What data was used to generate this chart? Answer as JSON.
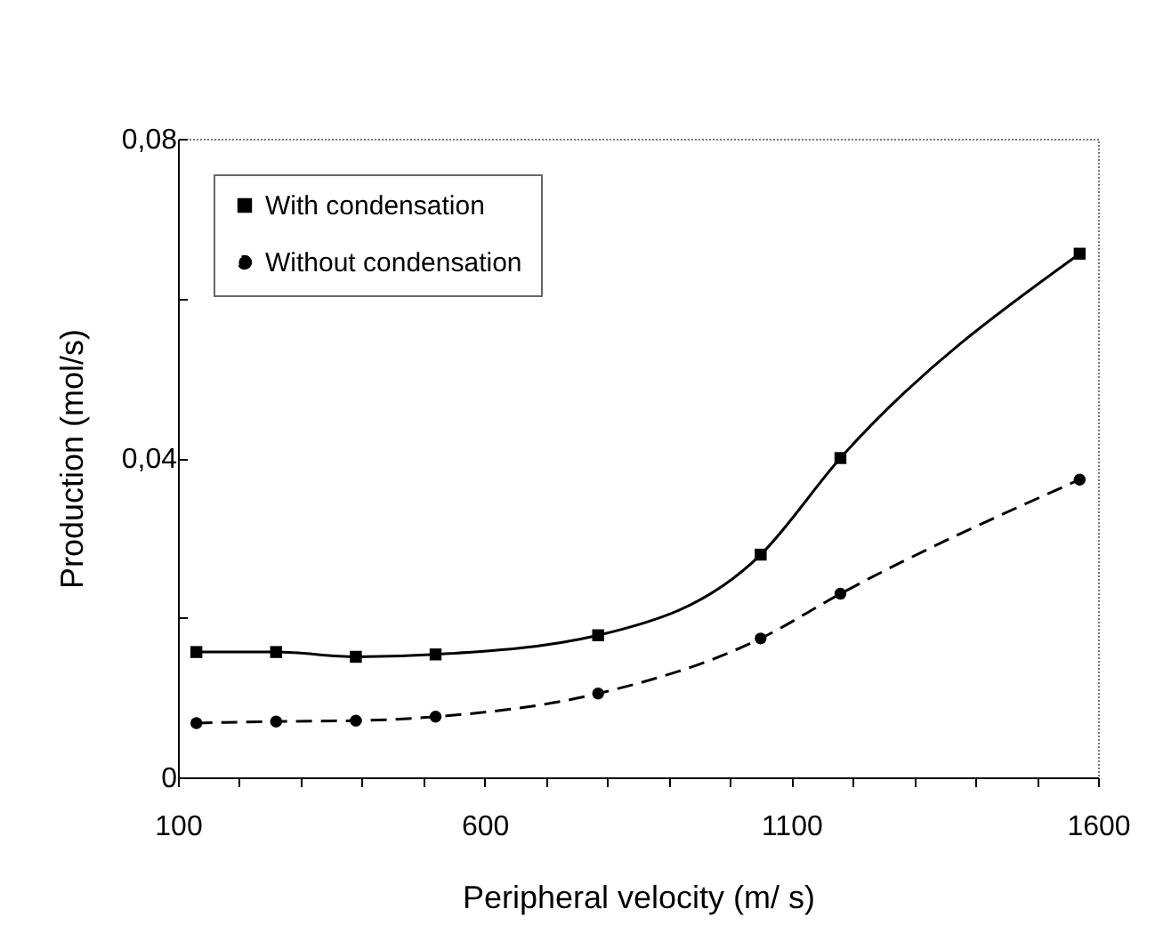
{
  "chart_data": {
    "type": "line",
    "xlabel": "Peripheral velocity (m/ s)",
    "ylabel": "Production (mol/s)",
    "x": [
      130,
      260,
      390,
      520,
      785,
      1050,
      1180,
      1570
    ],
    "series": [
      {
        "name": "With condensation",
        "color": "#000000",
        "marker": "square",
        "line_style": "solid",
        "values": [
          0.0157,
          0.0157,
          0.0151,
          0.0154,
          0.0178,
          0.0279,
          0.04,
          0.0656
        ]
      },
      {
        "name": "Without condensation",
        "color": "#000000",
        "marker": "circle",
        "line_style": "dashed",
        "values": [
          0.0068,
          0.007,
          0.0071,
          0.0076,
          0.0105,
          0.0174,
          0.023,
          0.0373
        ]
      }
    ],
    "xlim": [
      100,
      1600
    ],
    "xticks": [
      100,
      {
        "value": 200,
        "label": null
      },
      {
        "value": 300,
        "label": null
      },
      {
        "value": 400,
        "label": null
      },
      {
        "value": 500,
        "label": null
      },
      600,
      {
        "value": 700,
        "label": null
      },
      {
        "value": 800,
        "label": null
      },
      {
        "value": 900,
        "label": null
      },
      {
        "value": 1000,
        "label": null
      },
      1100,
      {
        "value": 1200,
        "label": null
      },
      {
        "value": 1300,
        "label": null
      },
      {
        "value": 1400,
        "label": null
      },
      {
        "value": 1500,
        "label": null
      },
      1600
    ],
    "ylim": [
      0,
      0.08
    ],
    "yticks": [
      {
        "value": 0,
        "label": "0"
      },
      {
        "value": 0.02,
        "label": null
      },
      {
        "value": 0.04,
        "label": "0,04"
      },
      {
        "value": 0.06,
        "label": null
      },
      {
        "value": 0.08,
        "label": "0,08"
      }
    ],
    "grid": false,
    "legend": "top left"
  }
}
